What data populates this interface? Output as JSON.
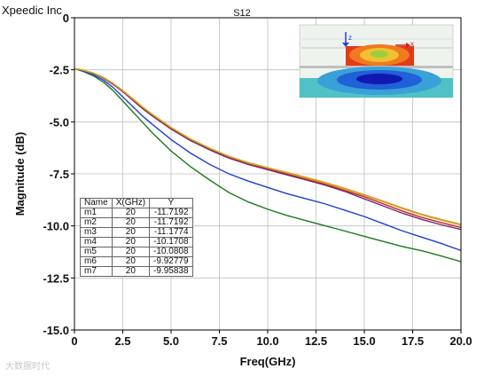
{
  "header": {
    "brand": "Xpeedic Inc",
    "title": "S12"
  },
  "watermark": "大数据时代",
  "marker_table": {
    "headers": [
      "Name",
      "X(GHz)",
      "Y"
    ],
    "rows": [
      [
        "m1",
        "20",
        "-11.7192"
      ],
      [
        "m2",
        "20",
        "-11.7192"
      ],
      [
        "m3",
        "20",
        "-11.1774"
      ],
      [
        "m4",
        "20",
        "-10.1708"
      ],
      [
        "m5",
        "20",
        "-10.0808"
      ],
      [
        "m6",
        "20",
        "-9.92779"
      ],
      [
        "m7",
        "20",
        "-9.95838"
      ]
    ]
  },
  "inset": {
    "axis_z": "z",
    "axis_x": "x"
  },
  "chart_data": {
    "type": "line",
    "title": "S12",
    "xlabel": "Freq(GHz)",
    "ylabel": "Magnitude (dB)",
    "xlim": [
      0,
      20
    ],
    "ylim": [
      -15,
      0
    ],
    "xticks": [
      "0",
      "2.5",
      "5.0",
      "7.5",
      "10.0",
      "12.5",
      "15.0",
      "17.5",
      "20.0"
    ],
    "yticks": [
      "0",
      "-2.5",
      "-5.0",
      "-7.5",
      "-10.0",
      "-12.5",
      "-15.0"
    ],
    "grid": true,
    "x": [
      0,
      0.25,
      0.5,
      1,
      1.5,
      2,
      2.5,
      3,
      3.5,
      4,
      5,
      6,
      7,
      8,
      9,
      10,
      11,
      12,
      13,
      14,
      15,
      16,
      17,
      18,
      19,
      20
    ],
    "series": [
      {
        "color": "#1a7a1a",
        "values": [
          -2.45,
          -2.52,
          -2.6,
          -2.8,
          -3.1,
          -3.5,
          -4.0,
          -4.5,
          -5.0,
          -5.5,
          -6.4,
          -7.15,
          -7.8,
          -8.4,
          -8.85,
          -9.2,
          -9.5,
          -9.75,
          -10.0,
          -10.25,
          -10.5,
          -10.75,
          -11.0,
          -11.2,
          -11.45,
          -11.72
        ]
      },
      {
        "color": "#1f3fd0",
        "values": [
          -2.45,
          -2.5,
          -2.58,
          -2.75,
          -3.0,
          -3.35,
          -3.8,
          -4.25,
          -4.7,
          -5.1,
          -5.85,
          -6.5,
          -7.05,
          -7.5,
          -7.85,
          -8.15,
          -8.45,
          -8.7,
          -8.95,
          -9.25,
          -9.55,
          -9.9,
          -10.25,
          -10.55,
          -10.85,
          -11.18
        ]
      },
      {
        "color": "#6a2c80",
        "values": [
          -2.45,
          -2.48,
          -2.54,
          -2.68,
          -2.9,
          -3.2,
          -3.55,
          -3.95,
          -4.35,
          -4.7,
          -5.35,
          -5.9,
          -6.35,
          -6.75,
          -7.05,
          -7.3,
          -7.55,
          -7.8,
          -8.05,
          -8.35,
          -8.7,
          -9.05,
          -9.4,
          -9.7,
          -9.95,
          -10.17
        ]
      },
      {
        "color": "#d02020",
        "values": [
          -2.45,
          -2.48,
          -2.54,
          -2.67,
          -2.88,
          -3.17,
          -3.52,
          -3.9,
          -4.3,
          -4.65,
          -5.3,
          -5.85,
          -6.3,
          -6.7,
          -7.0,
          -7.25,
          -7.5,
          -7.75,
          -8.0,
          -8.3,
          -8.6,
          -8.95,
          -9.3,
          -9.6,
          -9.85,
          -10.08
        ]
      },
      {
        "color": "#e07820",
        "values": [
          -2.45,
          -2.47,
          -2.53,
          -2.66,
          -2.87,
          -3.15,
          -3.5,
          -3.88,
          -4.27,
          -4.62,
          -5.27,
          -5.82,
          -6.27,
          -6.66,
          -6.96,
          -7.2,
          -7.43,
          -7.67,
          -7.92,
          -8.2,
          -8.5,
          -8.82,
          -9.15,
          -9.45,
          -9.7,
          -9.93
        ]
      },
      {
        "color": "#c8b020",
        "values": [
          -2.45,
          -2.47,
          -2.53,
          -2.66,
          -2.87,
          -3.15,
          -3.5,
          -3.88,
          -4.27,
          -4.62,
          -5.27,
          -5.82,
          -6.27,
          -6.66,
          -6.97,
          -7.21,
          -7.45,
          -7.7,
          -7.95,
          -8.23,
          -8.53,
          -8.85,
          -9.18,
          -9.48,
          -9.73,
          -9.96
        ]
      }
    ]
  }
}
